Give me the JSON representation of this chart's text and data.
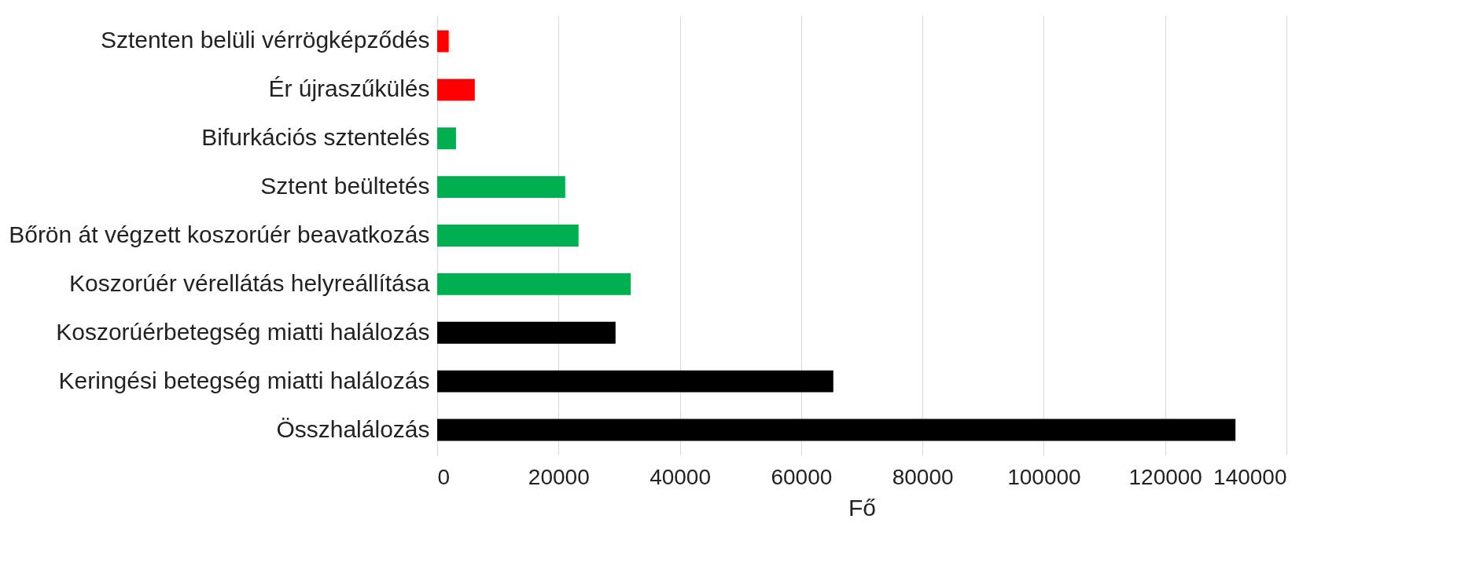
{
  "chart_data": {
    "type": "bar",
    "orientation": "horizontal",
    "xlabel": "Fő",
    "categories": [
      "Sztenten belüli vérrögképződés",
      "Ér újraszűkülés",
      "Bifurkációs sztentelés",
      "Sztent beültetés",
      "Bőrön át végzett koszorúér beavatkozás",
      "Koszorúér vérellátás helyreállítása",
      "Koszorúérbetegség miatti halálozás",
      "Keringési betegség miatti halálozás",
      "Összhalálozás"
    ],
    "values": [
      1900,
      6200,
      3100,
      21100,
      23300,
      31900,
      29400,
      65300,
      131600
    ],
    "colors": [
      "#ff0000",
      "#ff0000",
      "#00b050",
      "#00b050",
      "#00b050",
      "#00b050",
      "#000000",
      "#000000",
      "#000000"
    ],
    "xlim": [
      0,
      140000
    ],
    "xticks": [
      0,
      20000,
      40000,
      60000,
      80000,
      100000,
      120000,
      140000
    ],
    "grid": "x"
  }
}
